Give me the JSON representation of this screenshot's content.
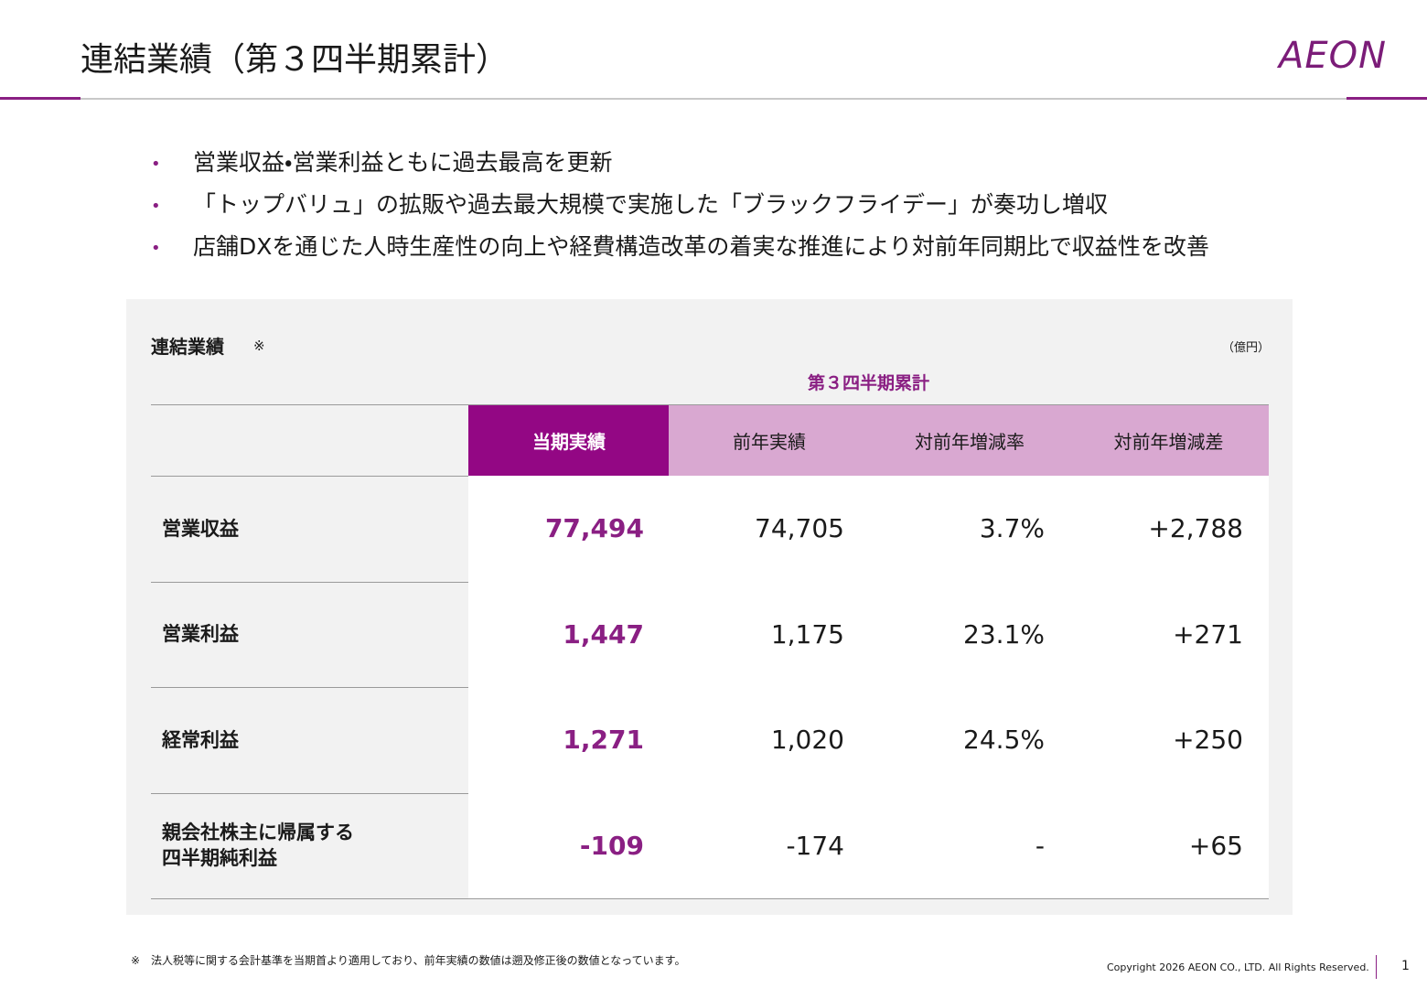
{
  "header": {
    "title": "連結業績（第３四半期累計）",
    "logo": "AEON"
  },
  "bullets": [
    "営業収益・営業利益ともに過去最高を更新",
    "「トップバリュ」の拡販や過去最大規模で実施した「ブラックフライデー」が奏功し増収",
    "店舗DXを通じた人時生産性の向上や経費構造改革の着実な推進により対前年同期比で収益性を改善"
  ],
  "panel": {
    "title": "連結業績",
    "mark": "※",
    "unit": "（億円）",
    "period": "第３四半期累計"
  },
  "table": {
    "headers": [
      "当期実績",
      "前年実績",
      "対前年増減率",
      "対前年増減差"
    ],
    "rows": [
      [
        "営業収益",
        "77,494",
        "74,705",
        "3.7%",
        "+2,788"
      ],
      [
        "営業利益",
        "1,447",
        "1,175",
        "23.1%",
        "+271"
      ],
      [
        "経常利益",
        "1,271",
        "1,020",
        "24.5%",
        "+250"
      ],
      [
        "親会社株主に帰属する\n四半期純利益",
        "-109",
        "-174",
        "-",
        "+65"
      ]
    ]
  },
  "footer": {
    "note": "※　法人税等に関する会計基準を当期首より適用しており、前年実績の数値は遡及修正後の数値となっています。",
    "copyright": "Copyright 2026 AEON CO., LTD. All Rights Reserved.",
    "page": "1"
  }
}
